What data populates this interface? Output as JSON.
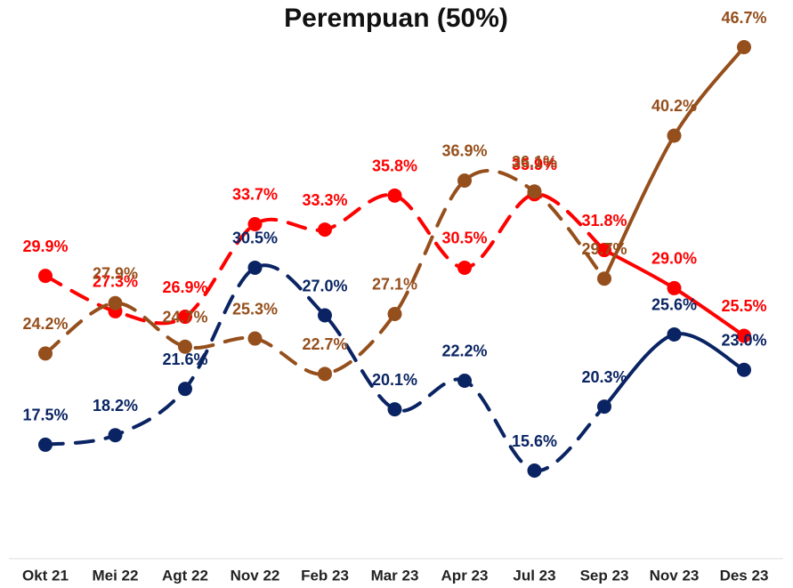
{
  "chart_data": {
    "type": "line",
    "title": "Perempuan (50%)",
    "categories": [
      "Okt 21",
      "Mei 22",
      "Agt 22",
      "Nov 22",
      "Feb 23",
      "Mar 23",
      "Apr 23",
      "Jul 23",
      "Sep 23",
      "Nov 23",
      "Des 23"
    ],
    "series": [
      {
        "color": "#ff0000",
        "values": [
          29.9,
          27.3,
          26.9,
          33.7,
          33.3,
          35.8,
          30.5,
          35.9,
          31.8,
          29.0,
          25.5
        ],
        "value_labels": [
          "29.9%",
          "27.3%",
          "26.9%",
          "33.7%",
          "33.3%",
          "35.8%",
          "30.5%",
          "35.9%",
          "31.8%",
          "29.0%",
          "25.5%"
        ]
      },
      {
        "color": "#954f1c",
        "values": [
          24.2,
          27.9,
          24.7,
          25.3,
          22.7,
          27.1,
          36.9,
          36.1,
          29.7,
          40.2,
          46.7
        ],
        "value_labels": [
          "24.2%",
          "27.9%",
          "24.7%",
          "25.3%",
          "22.7%",
          "27.1%",
          "36.9%",
          "36.1%",
          "29.7%",
          "40.2%",
          "46.7%"
        ]
      },
      {
        "color": "#0a2463",
        "values": [
          17.5,
          18.2,
          21.6,
          30.5,
          27.0,
          20.1,
          22.2,
          15.6,
          20.3,
          25.6,
          23.0
        ],
        "value_labels": [
          "17.5%",
          "18.2%",
          "21.6%",
          "30.5%",
          "27.0%",
          "20.1%",
          "22.2%",
          "15.6%",
          "20.3%",
          "25.6%",
          "23.0%"
        ]
      }
    ]
  }
}
